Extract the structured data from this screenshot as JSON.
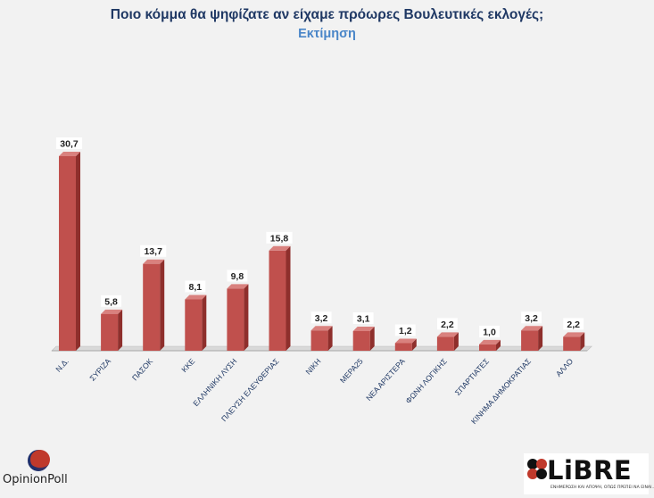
{
  "header": {
    "title": "Ποιο κόμμα θα ψηφίζατε αν είχαμε πρόωρες Βουλευτικές εκλογές;",
    "subtitle": "Εκτίμηση"
  },
  "chart_data": {
    "type": "bar",
    "title": "Ποιο κόμμα θα ψηφίζατε αν είχαμε πρόωρες Βουλευτικές εκλογές;",
    "subtitle": "Εκτίμηση",
    "categories": [
      "Ν.Δ.",
      "ΣΥΡΙΖΑ",
      "ΠΑΣΟΚ",
      "ΚΚΕ",
      "ΕΛΛΗΝΙΚΗ ΛΥΣΗ",
      "ΠΛΕΥΣΗ ΕΛΕΥΘΕΡΙΑΣ",
      "ΝΙΚΗ",
      "ΜΕΡΑ25",
      "ΝΕΑ ΑΡΙΣΤΕΡΑ",
      "ΦΩΝΗ ΛΟΓΙΚΗΣ",
      "ΣΠΑΡΤΙΑΤΕΣ",
      "ΚΙΝΗΜΑ ΔΗΜΟΚΡΑΤΙΑΣ",
      "ΑΛΛΟ"
    ],
    "values": [
      30.7,
      5.8,
      13.7,
      8.1,
      9.8,
      15.8,
      3.2,
      3.1,
      1.2,
      2.2,
      1.0,
      3.2,
      2.2
    ],
    "value_labels": [
      "30,7",
      "5,8",
      "13,7",
      "8,1",
      "9,8",
      "15,8",
      "3,2",
      "3,1",
      "1,2",
      "2,2",
      "1,0",
      "3,2",
      "2,2"
    ],
    "ylim": [
      0,
      32
    ],
    "grid": false,
    "bar_color": "#c0504d",
    "bar_side_color": "#8e2f2c",
    "bar_top_color": "#d9817e"
  },
  "logos": {
    "opinionpoll": "OpinionPoll",
    "libre": "LiBRE",
    "libre_tagline": "ΕΝΗΜΕΡΩΣΗ ΚΑΙ ΑΠΟΨΗ, ΟΠΩΣ ΠΡΕΠΕΙ ΝΑ ΕΙΝΑΙ...",
    "opinionpoll_colors": [
      "#c0392b",
      "#1f2f6b"
    ]
  }
}
